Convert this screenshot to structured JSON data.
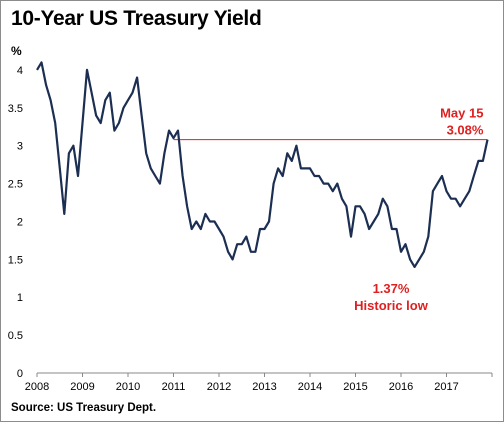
{
  "title": "10-Year US Treasury Yield",
  "source": "Source: US Treasury Dept.",
  "colors": {
    "line": "#1c2f52",
    "reference": "#e02020",
    "annotation": "#e02020",
    "axis": "#888888"
  },
  "chart_data": {
    "type": "line",
    "title": "10-Year US Treasury Yield",
    "ylabel": "%",
    "xlabel": "",
    "xlim": [
      2008,
      2017.95
    ],
    "ylim": [
      0,
      4.25
    ],
    "x_ticks": [
      "2008",
      "2009",
      "2010",
      "2011",
      "2012",
      "2013",
      "2014",
      "2015",
      "2016",
      "2017"
    ],
    "y_ticks": [
      "0",
      "0.5",
      "1",
      "1.5",
      "2",
      "2.5",
      "3",
      "3.5",
      "4"
    ],
    "grid": false,
    "legend": "none",
    "reference_line": {
      "y": 3.08,
      "from_x": 2011.0,
      "to_x": 2017.9
    },
    "annotations": [
      {
        "lines": [
          "May 15",
          "3.08%"
        ],
        "x": 2017.9,
        "y": 3.08,
        "anchor": "right"
      },
      {
        "lines": [
          "1.37%",
          "Historic low"
        ],
        "x": 2016.0,
        "y": 1.37,
        "anchor": "below"
      }
    ],
    "series": [
      {
        "x": [
          2008.0,
          2008.1,
          2008.2,
          2008.3,
          2008.4,
          2008.5,
          2008.6,
          2008.7,
          2008.8,
          2008.9,
          2009.0,
          2009.1,
          2009.2,
          2009.3,
          2009.4,
          2009.5,
          2009.6,
          2009.7,
          2009.8,
          2009.9,
          2010.0,
          2010.1,
          2010.2,
          2010.3,
          2010.4,
          2010.5,
          2010.6,
          2010.7,
          2010.8,
          2010.9,
          2011.0,
          2011.1,
          2011.2,
          2011.3,
          2011.4,
          2011.5,
          2011.6,
          2011.7,
          2011.8,
          2011.9,
          2012.0,
          2012.1,
          2012.2,
          2012.3,
          2012.4,
          2012.5,
          2012.6,
          2012.7,
          2012.8,
          2012.9,
          2013.0,
          2013.1,
          2013.2,
          2013.3,
          2013.4,
          2013.5,
          2013.6,
          2013.7,
          2013.8,
          2013.9,
          2014.0,
          2014.1,
          2014.2,
          2014.3,
          2014.4,
          2014.5,
          2014.6,
          2014.7,
          2014.8,
          2014.9,
          2015.0,
          2015.1,
          2015.2,
          2015.3,
          2015.4,
          2015.5,
          2015.6,
          2015.7,
          2015.8,
          2015.9,
          2016.0,
          2016.1,
          2016.2,
          2016.3,
          2016.4,
          2016.5,
          2016.6,
          2016.7,
          2016.8,
          2016.9,
          2017.0,
          2017.1,
          2017.2,
          2017.3,
          2017.4,
          2017.5,
          2017.6,
          2017.7,
          2017.8,
          2017.9
        ],
        "values": [
          4.0,
          4.1,
          3.8,
          3.6,
          3.3,
          2.7,
          2.1,
          2.9,
          3.0,
          2.6,
          3.3,
          4.0,
          3.7,
          3.4,
          3.3,
          3.6,
          3.7,
          3.2,
          3.3,
          3.5,
          3.6,
          3.7,
          3.9,
          3.4,
          2.9,
          2.7,
          2.6,
          2.5,
          2.9,
          3.2,
          3.1,
          3.2,
          2.6,
          2.2,
          1.9,
          2.0,
          1.9,
          2.1,
          2.0,
          2.0,
          1.9,
          1.8,
          1.6,
          1.5,
          1.7,
          1.7,
          1.8,
          1.6,
          1.6,
          1.9,
          1.9,
          2.0,
          2.5,
          2.7,
          2.6,
          2.9,
          2.8,
          3.0,
          2.7,
          2.7,
          2.7,
          2.6,
          2.6,
          2.5,
          2.5,
          2.4,
          2.5,
          2.3,
          2.2,
          1.8,
          2.2,
          2.2,
          2.1,
          1.9,
          2.0,
          2.1,
          2.3,
          2.2,
          1.9,
          1.9,
          1.6,
          1.7,
          1.5,
          1.4,
          1.5,
          1.6,
          1.8,
          2.4,
          2.5,
          2.6,
          2.4,
          2.3,
          2.3,
          2.2,
          2.3,
          2.4,
          2.6,
          2.8,
          2.8,
          3.08
        ]
      }
    ]
  }
}
